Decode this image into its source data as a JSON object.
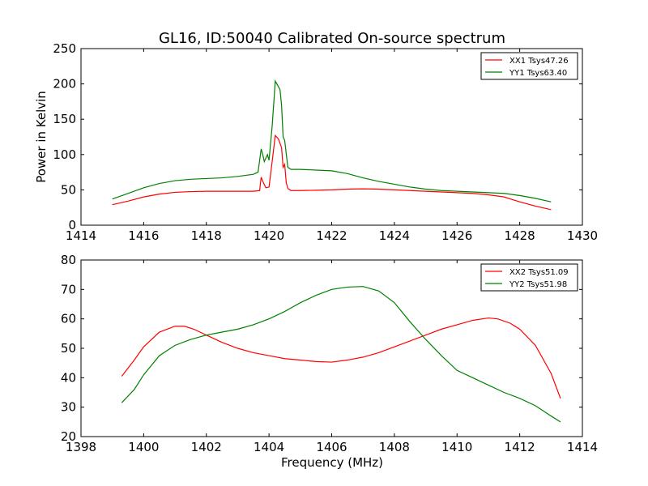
{
  "figure": {
    "title": "GL16, ID:50040 Calibrated On-source spectrum",
    "xlabel": "Frequency (MHz)"
  },
  "chart_data": [
    {
      "type": "line",
      "ylabel": "Power in Kelvin",
      "xlim": [
        1414,
        1430
      ],
      "ylim": [
        0,
        250
      ],
      "xticks": [
        1414,
        1416,
        1418,
        1420,
        1422,
        1424,
        1426,
        1428,
        1430
      ],
      "yticks": [
        0,
        50,
        100,
        150,
        200,
        250
      ],
      "grid": false,
      "legend": "top-right",
      "series": [
        {
          "name": "XX1 Tsys47.26",
          "color": "#ff0000",
          "points": [
            [
              1415.0,
              29
            ],
            [
              1415.5,
              34
            ],
            [
              1416.0,
              40
            ],
            [
              1416.5,
              44
            ],
            [
              1417.0,
              46.5
            ],
            [
              1417.5,
              47.5
            ],
            [
              1418.0,
              48
            ],
            [
              1418.5,
              48
            ],
            [
              1419.0,
              48
            ],
            [
              1419.5,
              48
            ],
            [
              1419.7,
              49
            ],
            [
              1419.75,
              68
            ],
            [
              1419.8,
              62
            ],
            [
              1419.9,
              53
            ],
            [
              1420.0,
              54
            ],
            [
              1420.1,
              90
            ],
            [
              1420.2,
              127
            ],
            [
              1420.3,
              122
            ],
            [
              1420.4,
              110
            ],
            [
              1420.45,
              82
            ],
            [
              1420.5,
              86
            ],
            [
              1420.55,
              60
            ],
            [
              1420.6,
              52
            ],
            [
              1420.7,
              49
            ],
            [
              1421.0,
              49
            ],
            [
              1421.5,
              49.5
            ],
            [
              1422.0,
              50
            ],
            [
              1422.5,
              51
            ],
            [
              1423.0,
              51.5
            ],
            [
              1423.5,
              51
            ],
            [
              1424.0,
              50
            ],
            [
              1424.5,
              49
            ],
            [
              1425.0,
              48
            ],
            [
              1425.5,
              47
            ],
            [
              1426.0,
              46
            ],
            [
              1426.5,
              45
            ],
            [
              1427.0,
              43
            ],
            [
              1427.5,
              40
            ],
            [
              1428.0,
              33
            ],
            [
              1428.5,
              27
            ],
            [
              1429.0,
              22
            ]
          ]
        },
        {
          "name": "YY1 Tsys63.40",
          "color": "#008000",
          "points": [
            [
              1415.0,
              37
            ],
            [
              1415.5,
              45
            ],
            [
              1416.0,
              53
            ],
            [
              1416.5,
              59
            ],
            [
              1417.0,
              63
            ],
            [
              1417.5,
              65
            ],
            [
              1418.0,
              66
            ],
            [
              1418.5,
              67
            ],
            [
              1419.0,
              69
            ],
            [
              1419.5,
              72
            ],
            [
              1419.65,
              75
            ],
            [
              1419.75,
              108
            ],
            [
              1419.8,
              100
            ],
            [
              1419.85,
              90
            ],
            [
              1419.95,
              100
            ],
            [
              1420.0,
              92
            ],
            [
              1420.1,
              140
            ],
            [
              1420.2,
              204
            ],
            [
              1420.3,
              196
            ],
            [
              1420.35,
              192
            ],
            [
              1420.4,
              170
            ],
            [
              1420.45,
              125
            ],
            [
              1420.5,
              120
            ],
            [
              1420.6,
              82
            ],
            [
              1420.7,
              79
            ],
            [
              1421.0,
              79
            ],
            [
              1421.5,
              78
            ],
            [
              1422.0,
              77
            ],
            [
              1422.5,
              73
            ],
            [
              1423.0,
              67
            ],
            [
              1423.5,
              62
            ],
            [
              1424.0,
              58
            ],
            [
              1424.5,
              54
            ],
            [
              1425.0,
              51
            ],
            [
              1425.5,
              49
            ],
            [
              1426.0,
              48
            ],
            [
              1426.5,
              47
            ],
            [
              1427.0,
              46
            ],
            [
              1427.5,
              45
            ],
            [
              1428.0,
              42
            ],
            [
              1428.5,
              38
            ],
            [
              1429.0,
              33
            ]
          ]
        }
      ]
    },
    {
      "type": "line",
      "ylabel": "",
      "xlim": [
        1398,
        1414
      ],
      "ylim": [
        20,
        80
      ],
      "xticks": [
        1398,
        1400,
        1402,
        1404,
        1406,
        1408,
        1410,
        1412,
        1414
      ],
      "yticks": [
        20,
        30,
        40,
        50,
        60,
        70,
        80
      ],
      "grid": false,
      "legend": "top-right",
      "series": [
        {
          "name": "XX2 Tsys51.09",
          "color": "#ff0000",
          "points": [
            [
              1399.3,
              40.5
            ],
            [
              1399.7,
              46
            ],
            [
              1400.0,
              50.5
            ],
            [
              1400.5,
              55.5
            ],
            [
              1401.0,
              57.5
            ],
            [
              1401.3,
              57.5
            ],
            [
              1401.6,
              56.5
            ],
            [
              1402.0,
              54.5
            ],
            [
              1402.5,
              52
            ],
            [
              1403.0,
              50
            ],
            [
              1403.5,
              48.5
            ],
            [
              1404.0,
              47.5
            ],
            [
              1404.5,
              46.5
            ],
            [
              1405.0,
              46
            ],
            [
              1405.5,
              45.5
            ],
            [
              1406.0,
              45.3
            ],
            [
              1406.5,
              46
            ],
            [
              1407.0,
              47
            ],
            [
              1407.5,
              48.5
            ],
            [
              1408.0,
              50.5
            ],
            [
              1408.5,
              52.5
            ],
            [
              1409.0,
              54.5
            ],
            [
              1409.5,
              56.5
            ],
            [
              1410.0,
              58
            ],
            [
              1410.5,
              59.5
            ],
            [
              1411.0,
              60.3
            ],
            [
              1411.3,
              60
            ],
            [
              1411.7,
              58.5
            ],
            [
              1412.0,
              56.5
            ],
            [
              1412.5,
              51
            ],
            [
              1413.0,
              41.5
            ],
            [
              1413.3,
              33
            ]
          ]
        },
        {
          "name": "YY2 Tsys51.98",
          "color": "#008000",
          "points": [
            [
              1399.3,
              31.5
            ],
            [
              1399.7,
              36
            ],
            [
              1400.0,
              41
            ],
            [
              1400.5,
              47.5
            ],
            [
              1401.0,
              51
            ],
            [
              1401.5,
              53
            ],
            [
              1402.0,
              54.5
            ],
            [
              1402.5,
              55.5
            ],
            [
              1403.0,
              56.5
            ],
            [
              1403.5,
              58
            ],
            [
              1404.0,
              60
            ],
            [
              1404.5,
              62.5
            ],
            [
              1405.0,
              65.5
            ],
            [
              1405.5,
              68
            ],
            [
              1406.0,
              70
            ],
            [
              1406.5,
              70.8
            ],
            [
              1407.0,
              71
            ],
            [
              1407.5,
              69.5
            ],
            [
              1408.0,
              65.5
            ],
            [
              1408.5,
              59
            ],
            [
              1409.0,
              53
            ],
            [
              1409.5,
              47.5
            ],
            [
              1410.0,
              42.5
            ],
            [
              1410.5,
              40
            ],
            [
              1411.0,
              37.5
            ],
            [
              1411.5,
              35
            ],
            [
              1412.0,
              33
            ],
            [
              1412.5,
              30.5
            ],
            [
              1413.0,
              27
            ],
            [
              1413.3,
              25
            ]
          ]
        }
      ]
    }
  ]
}
